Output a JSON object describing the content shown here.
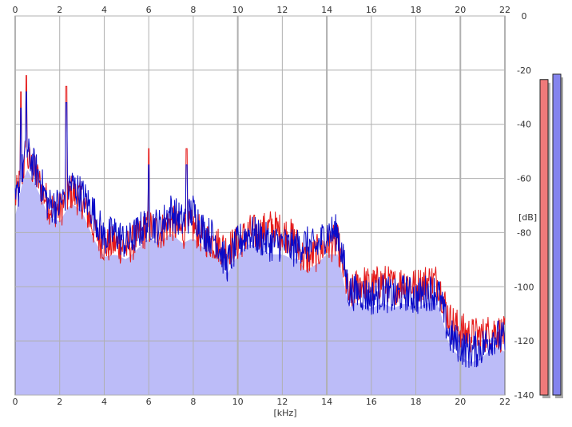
{
  "chart_data": {
    "type": "area",
    "x_unit_label": "[kHz]",
    "y_unit_label": "[dB]",
    "xlim": [
      0,
      22
    ],
    "ylim": [
      -140,
      0
    ],
    "x_ticks": [
      "0",
      "2",
      "4",
      "6",
      "8",
      "10",
      "12",
      "14",
      "16",
      "18",
      "20",
      "22"
    ],
    "y_ticks": [
      "0",
      "-20",
      "-40",
      "-60",
      "-80",
      "-100",
      "-120",
      "-140"
    ],
    "grid": true,
    "series": [
      {
        "channel": "red",
        "color": "#e51919",
        "x": [
          0.0,
          0.5,
          1.0,
          1.5,
          2.0,
          2.5,
          3.0,
          3.5,
          4.0,
          4.5,
          5.0,
          5.5,
          6.0,
          6.5,
          7.0,
          7.5,
          8.0,
          8.5,
          9.0,
          9.5,
          10.0,
          10.5,
          11.0,
          11.5,
          12.0,
          12.5,
          13.0,
          13.5,
          14.0,
          14.5,
          15.0,
          15.5,
          16.0,
          16.5,
          17.0,
          17.5,
          18.0,
          18.5,
          19.0,
          19.5,
          20.0,
          20.5,
          21.0,
          21.5,
          22.0
        ],
        "values": [
          -68,
          -52,
          -60,
          -70,
          -72,
          -65,
          -68,
          -78,
          -85,
          -84,
          -86,
          -82,
          -78,
          -80,
          -76,
          -80,
          -78,
          -82,
          -84,
          -86,
          -84,
          -80,
          -80,
          -78,
          -80,
          -82,
          -90,
          -88,
          -84,
          -84,
          -104,
          -98,
          -100,
          -98,
          -100,
          -98,
          -100,
          -98,
          -98,
          -112,
          -116,
          -118,
          -118,
          -116,
          -118
        ]
      },
      {
        "channel": "blue",
        "color": "#0a0ac8",
        "x": [
          0.0,
          0.5,
          1.0,
          1.5,
          2.0,
          2.5,
          3.0,
          3.5,
          4.0,
          4.5,
          5.0,
          5.5,
          6.0,
          6.5,
          7.0,
          7.5,
          8.0,
          8.5,
          9.0,
          9.5,
          10.0,
          10.5,
          11.0,
          11.5,
          12.0,
          12.5,
          13.0,
          13.5,
          14.0,
          14.5,
          15.0,
          15.5,
          16.0,
          16.5,
          17.0,
          17.5,
          18.0,
          18.5,
          19.0,
          19.5,
          20.0,
          20.5,
          21.0,
          21.5,
          22.0
        ],
        "values": [
          -70,
          -50,
          -58,
          -70,
          -70,
          -62,
          -66,
          -72,
          -82,
          -80,
          -84,
          -80,
          -76,
          -78,
          -72,
          -76,
          -72,
          -80,
          -82,
          -92,
          -84,
          -80,
          -82,
          -84,
          -84,
          -86,
          -84,
          -86,
          -80,
          -80,
          -102,
          -102,
          -104,
          -102,
          -104,
          -102,
          -104,
          -102,
          -102,
          -118,
          -122,
          -124,
          -122,
          -118,
          -120
        ]
      }
    ],
    "peaks": [
      {
        "x": 0.25,
        "value": -34
      },
      {
        "x": 0.5,
        "value": -28
      },
      {
        "x": 2.3,
        "value": -32
      },
      {
        "x": 6.0,
        "value": -55
      },
      {
        "x": 7.7,
        "value": -55
      }
    ],
    "level_meters": [
      {
        "channel": "red",
        "color": "#f07a7a",
        "value": -23.5
      },
      {
        "channel": "blue",
        "color": "#8484ee",
        "value": -21.5
      }
    ],
    "fill_color": "#bcbcf8"
  }
}
